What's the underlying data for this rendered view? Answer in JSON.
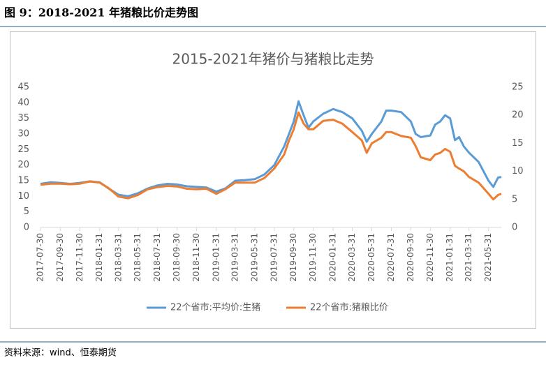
{
  "header": {
    "title": "图 9：2018-2021 年猪粮比价走势图"
  },
  "source": "资料来源：wind、恒泰期货",
  "chart_data": {
    "type": "line",
    "title": "2015-2021年猪价与猪粮比走势",
    "x": [
      "2017-07-30",
      "2017-08-31",
      "2017-09-30",
      "2017-10-31",
      "2017-11-30",
      "2017-12-31",
      "2018-01-31",
      "2018-02-28",
      "2018-03-31",
      "2018-04-30",
      "2018-05-31",
      "2018-06-30",
      "2018-07-31",
      "2018-08-31",
      "2018-09-30",
      "2018-10-31",
      "2018-11-30",
      "2018-12-31",
      "2019-01-31",
      "2019-02-28",
      "2019-03-31",
      "2019-04-30",
      "2019-05-31",
      "2019-06-30",
      "2019-07-31",
      "2019-08-31",
      "2019-09-15",
      "2019-09-30",
      "2019-10-15",
      "2019-10-31",
      "2019-11-15",
      "2019-11-30",
      "2019-12-31",
      "2020-01-31",
      "2020-02-29",
      "2020-03-31",
      "2020-04-30",
      "2020-05-15",
      "2020-05-31",
      "2020-06-30",
      "2020-07-15",
      "2020-07-31",
      "2020-08-31",
      "2020-09-30",
      "2020-10-15",
      "2020-10-31",
      "2020-11-30",
      "2020-12-15",
      "2020-12-31",
      "2021-01-15",
      "2021-01-31",
      "2021-02-15",
      "2021-02-28",
      "2021-03-15",
      "2021-03-31",
      "2021-04-30",
      "2021-05-31",
      "2021-06-15",
      "2021-06-30",
      "2021-07-10"
    ],
    "series": [
      {
        "name": "22个省市:平均价:生猪",
        "color": "#5b9bd5",
        "values": [
          14,
          14.5,
          14.3,
          14,
          14.3,
          14.8,
          14.5,
          12.5,
          10.5,
          10,
          11,
          12.5,
          13.5,
          14,
          13.8,
          13.2,
          13,
          12.8,
          11.5,
          12.5,
          15,
          15.2,
          15.5,
          17,
          20,
          26,
          30,
          34,
          40.5,
          36,
          32,
          34,
          36.5,
          38,
          37,
          35,
          31,
          27.5,
          30,
          34,
          37.5,
          37.5,
          37,
          34,
          30,
          29,
          29.5,
          33,
          34,
          36,
          35,
          28,
          29,
          26,
          24,
          21,
          15,
          13,
          16,
          16.2
        ]
      },
      {
        "name": "22个省市:猪粮比价",
        "color": "#ed7d31",
        "axis": "y2",
        "values": [
          7.6,
          7.8,
          7.8,
          7.7,
          7.8,
          8.2,
          8.0,
          7.0,
          5.5,
          5.2,
          5.8,
          6.8,
          7.2,
          7.4,
          7.3,
          6.9,
          6.8,
          6.9,
          6.0,
          6.8,
          8.0,
          8.0,
          8.0,
          8.8,
          10.5,
          13,
          15.5,
          17.5,
          20.5,
          18.5,
          17.5,
          17.5,
          19,
          19.2,
          18.5,
          17,
          15.5,
          13.3,
          15,
          16,
          17,
          17,
          16.3,
          16,
          14.5,
          12.5,
          12,
          13,
          13.3,
          14,
          13.5,
          11,
          10.5,
          10,
          9,
          8,
          6,
          5,
          5.8,
          6
        ]
      }
    ],
    "xlim": [
      "2017-07-30",
      "2021-07-10"
    ],
    "xticks": [
      "2017-07-30",
      "2017-09-30",
      "2017-11-30",
      "2018-01-31",
      "2018-03-31",
      "2018-05-31",
      "2018-07-31",
      "2018-09-30",
      "2018-11-30",
      "2019-01-31",
      "2019-03-31",
      "2019-05-31",
      "2019-07-31",
      "2019-09-30",
      "2019-11-30",
      "2020-01-31",
      "2020-03-31",
      "2020-05-31",
      "2020-07-31",
      "2020-09-30",
      "2020-11-30",
      "2021-01-31",
      "2021-03-31",
      "2021-05-31"
    ],
    "ylim": [
      0,
      45
    ],
    "yticks": [
      0,
      5,
      10,
      15,
      20,
      25,
      30,
      35,
      40,
      45
    ],
    "y2lim": [
      0,
      25
    ],
    "y2ticks": [
      0,
      5,
      10,
      15,
      20,
      25
    ],
    "legend": "bottom"
  }
}
